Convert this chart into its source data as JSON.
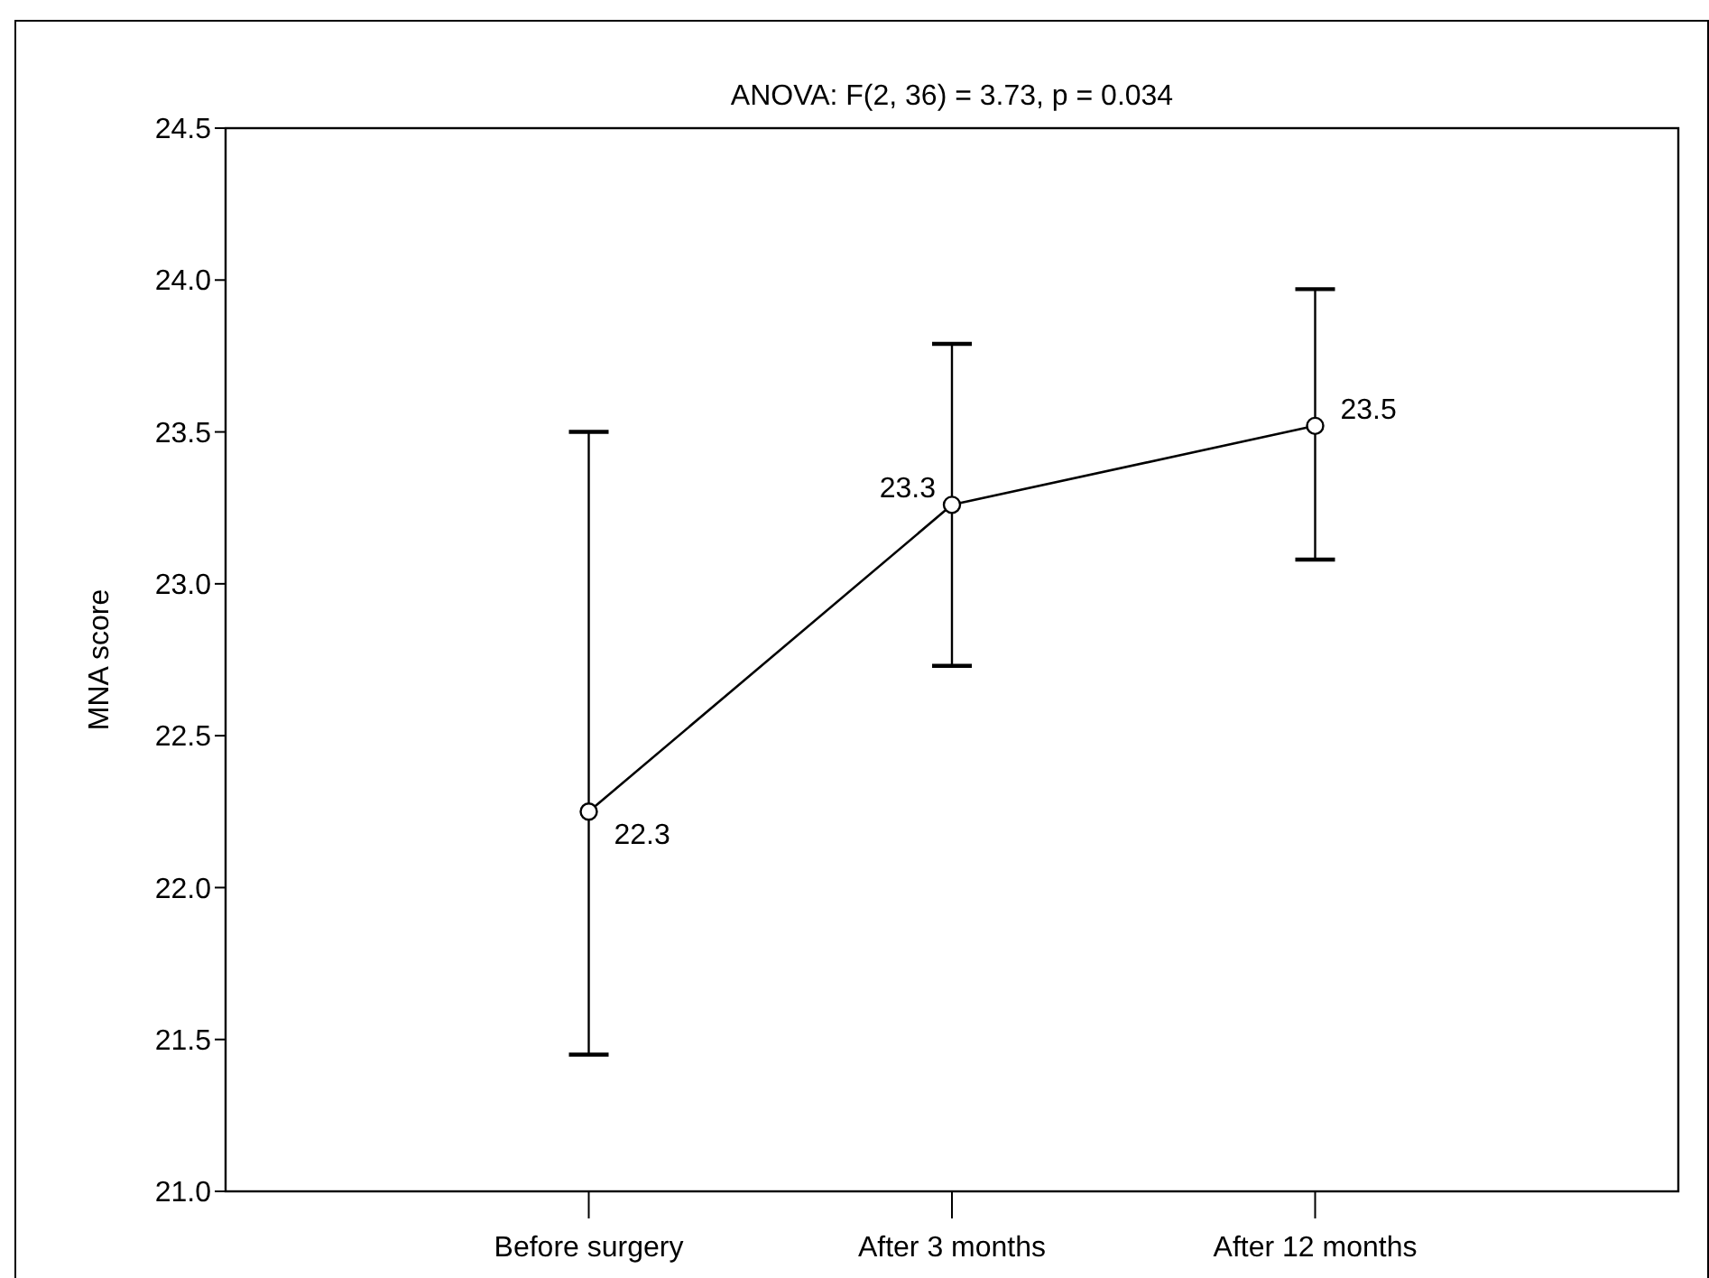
{
  "chart_data": {
    "type": "line",
    "title": "ANOVA: F(2, 36) = 3.73, p = 0.034",
    "ylabel": "MNA score",
    "categories": [
      "Before surgery",
      "After 3 months",
      "After 12 months"
    ],
    "series": [
      {
        "color": "#000000",
        "values": [
          22.25,
          23.26,
          23.52
        ],
        "errors": [
          [
            21.45,
            23.5
          ],
          [
            22.73,
            23.79
          ],
          [
            23.08,
            23.97
          ]
        ],
        "value_labels": [
          "22.3",
          "23.3",
          "23.5"
        ]
      }
    ],
    "ylim": [
      21.0,
      24.5
    ],
    "yticks": [
      {
        "value": 21,
        "label": "21.0"
      },
      {
        "value": 21.5,
        "label": "21.5"
      },
      {
        "value": 22,
        "label": "22.0"
      },
      {
        "value": 22.5,
        "label": "22.5"
      },
      {
        "value": 23,
        "label": "23.0"
      },
      {
        "value": 23.5,
        "label": "23.5"
      },
      {
        "value": 24,
        "label": "24.0"
      },
      {
        "value": 24.5,
        "label": "24.5"
      }
    ],
    "grid": false,
    "marker": "circle",
    "line_style": "solid"
  }
}
